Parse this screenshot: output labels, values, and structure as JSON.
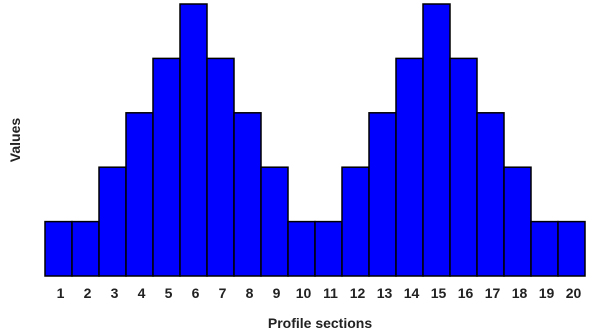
{
  "chart_data": {
    "type": "bar",
    "title": "",
    "xlabel": "Profile sections",
    "ylabel": "Values",
    "categories": [
      "1",
      "2",
      "3",
      "4",
      "5",
      "6",
      "7",
      "8",
      "9",
      "10",
      "11",
      "12",
      "13",
      "14",
      "15",
      "16",
      "17",
      "18",
      "19",
      "20"
    ],
    "values": [
      1,
      1,
      2,
      3,
      4,
      5,
      4,
      3,
      2,
      1,
      1,
      2,
      3,
      4,
      5,
      4,
      3,
      2,
      1,
      1
    ],
    "ylim": [
      0,
      5
    ],
    "grid": false,
    "legend": "none",
    "bar_color": "#0000ff"
  }
}
